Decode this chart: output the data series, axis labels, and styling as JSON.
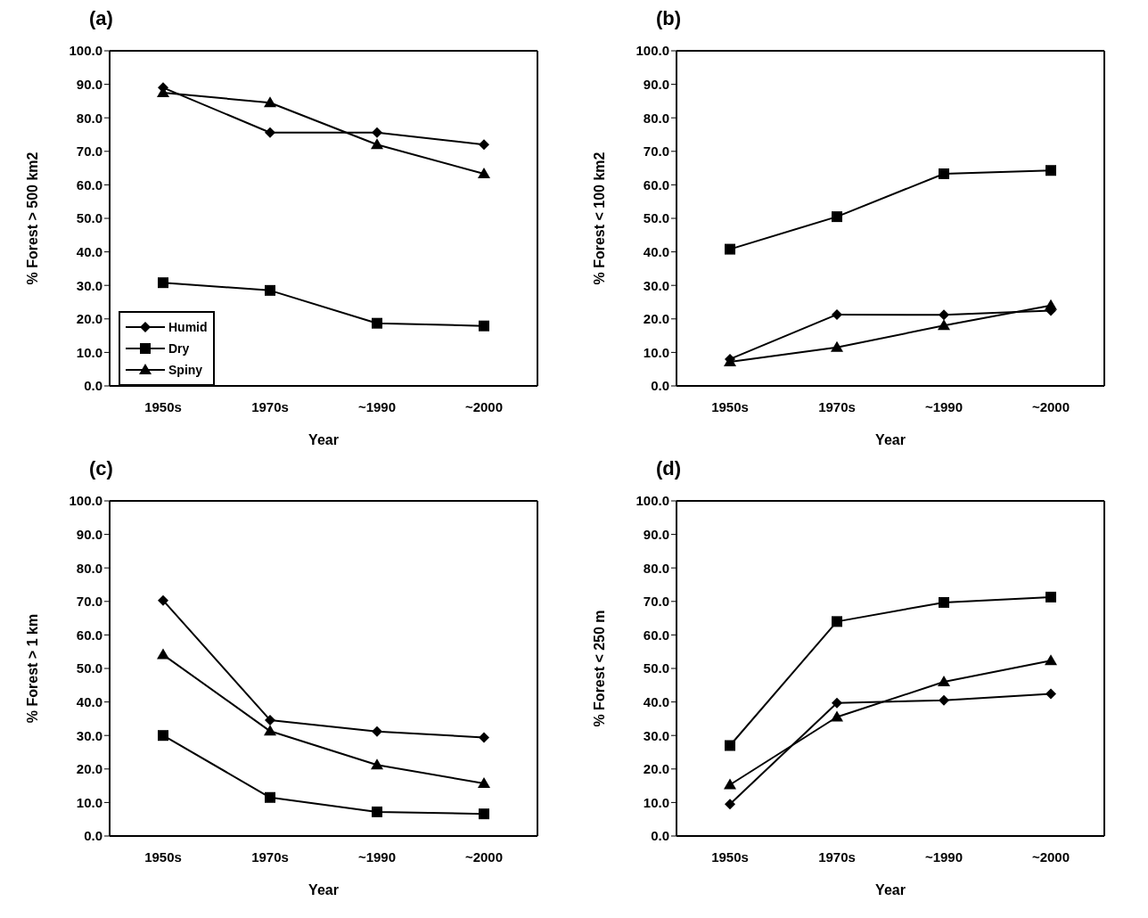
{
  "chart_data": [
    {
      "type": "line",
      "title": "(a)",
      "xlabel": "Year",
      "ylabel": "% Forest > 500 km2",
      "categories": [
        "1950s",
        "1970s",
        "~1990",
        "~2000"
      ],
      "ylim": [
        0,
        100
      ],
      "yticks": [
        {
          "value": 0,
          "label": "0.0"
        },
        {
          "value": 10,
          "label": "10.0"
        },
        {
          "value": 20,
          "label": "20.0"
        },
        {
          "value": 30,
          "label": "30.0"
        },
        {
          "value": 40,
          "label": "40.0"
        },
        {
          "value": 50,
          "label": "50.0"
        },
        {
          "value": 60,
          "label": "60.0"
        },
        {
          "value": 70,
          "label": "70.0"
        },
        {
          "value": 80,
          "label": "80.0"
        },
        {
          "value": 90,
          "label": "90.0"
        },
        {
          "value": 100,
          "label": "100.0"
        }
      ],
      "grid": false,
      "legend": "bottom left",
      "series": [
        {
          "name": "Humid",
          "color": "#000000",
          "marker": "diamond",
          "values": [
            89,
            75.6,
            75.6,
            72
          ]
        },
        {
          "name": "Dry",
          "color": "#000000",
          "marker": "square",
          "values": [
            30.8,
            28.5,
            18.7,
            17.9
          ]
        },
        {
          "name": "Spiny",
          "color": "#000000",
          "marker": "triangle",
          "values": [
            87.5,
            84.5,
            72,
            63.3
          ]
        }
      ]
    },
    {
      "type": "line",
      "title": "(b)",
      "xlabel": "Year",
      "ylabel": "% Forest < 100 km2",
      "categories": [
        "1950s",
        "1970s",
        "~1990",
        "~2000"
      ],
      "ylim": [
        0,
        100
      ],
      "yticks": [
        {
          "value": 0,
          "label": "0.0"
        },
        {
          "value": 10,
          "label": "10.0"
        },
        {
          "value": 20,
          "label": "20.0"
        },
        {
          "value": 30,
          "label": "30.0"
        },
        {
          "value": 40,
          "label": "40.0"
        },
        {
          "value": 50,
          "label": "50.0"
        },
        {
          "value": 60,
          "label": "60.0"
        },
        {
          "value": 70,
          "label": "70.0"
        },
        {
          "value": 80,
          "label": "80.0"
        },
        {
          "value": 90,
          "label": "90.0"
        },
        {
          "value": 100,
          "label": "100.0"
        }
      ],
      "grid": false,
      "legend": false,
      "series": [
        {
          "color": "#000000",
          "marker": "diamond",
          "values": [
            8,
            21.3,
            21.2,
            22.5
          ]
        },
        {
          "color": "#000000",
          "marker": "square",
          "values": [
            40.8,
            50.5,
            63.3,
            64.3
          ]
        },
        {
          "color": "#000000",
          "marker": "triangle",
          "values": [
            7.2,
            11.5,
            18,
            24
          ]
        }
      ]
    },
    {
      "type": "line",
      "title": "(c)",
      "xlabel": "Year",
      "ylabel": "% Forest > 1 km",
      "categories": [
        "1950s",
        "1970s",
        "~1990",
        "~2000"
      ],
      "ylim": [
        0,
        100
      ],
      "yticks": [
        {
          "value": 0,
          "label": "0.0"
        },
        {
          "value": 10,
          "label": "10.0"
        },
        {
          "value": 20,
          "label": "20.0"
        },
        {
          "value": 30,
          "label": "30.0"
        },
        {
          "value": 40,
          "label": "40.0"
        },
        {
          "value": 50,
          "label": "50.0"
        },
        {
          "value": 60,
          "label": "60.0"
        },
        {
          "value": 70,
          "label": "70.0"
        },
        {
          "value": 80,
          "label": "80.0"
        },
        {
          "value": 90,
          "label": "90.0"
        },
        {
          "value": 100,
          "label": "100.0"
        }
      ],
      "grid": false,
      "legend": false,
      "series": [
        {
          "color": "#000000",
          "marker": "diamond",
          "values": [
            70.3,
            34.6,
            31.2,
            29.4
          ]
        },
        {
          "color": "#000000",
          "marker": "square",
          "values": [
            30,
            11.5,
            7.2,
            6.6
          ]
        },
        {
          "color": "#000000",
          "marker": "triangle",
          "values": [
            54.1,
            31.3,
            21.2,
            15.7
          ]
        }
      ]
    },
    {
      "type": "line",
      "title": "(d)",
      "xlabel": "Year",
      "ylabel": "% Forest < 250 m",
      "categories": [
        "1950s",
        "1970s",
        "~1990",
        "~2000"
      ],
      "ylim": [
        0,
        100
      ],
      "yticks": [
        {
          "value": 0,
          "label": "0.0"
        },
        {
          "value": 10,
          "label": "10.0"
        },
        {
          "value": 20,
          "label": "20.0"
        },
        {
          "value": 30,
          "label": "30.0"
        },
        {
          "value": 40,
          "label": "40.0"
        },
        {
          "value": 50,
          "label": "50.0"
        },
        {
          "value": 60,
          "label": "60.0"
        },
        {
          "value": 70,
          "label": "70.0"
        },
        {
          "value": 80,
          "label": "80.0"
        },
        {
          "value": 90,
          "label": "90.0"
        },
        {
          "value": 100,
          "label": "100.0"
        }
      ],
      "grid": false,
      "legend": false,
      "series": [
        {
          "color": "#000000",
          "marker": "diamond",
          "values": [
            9.5,
            39.7,
            40.5,
            42.4
          ]
        },
        {
          "color": "#000000",
          "marker": "square",
          "values": [
            27,
            64,
            69.7,
            71.3
          ]
        },
        {
          "color": "#000000",
          "marker": "triangle",
          "values": [
            15.3,
            35.5,
            46,
            52.3
          ]
        }
      ]
    }
  ]
}
